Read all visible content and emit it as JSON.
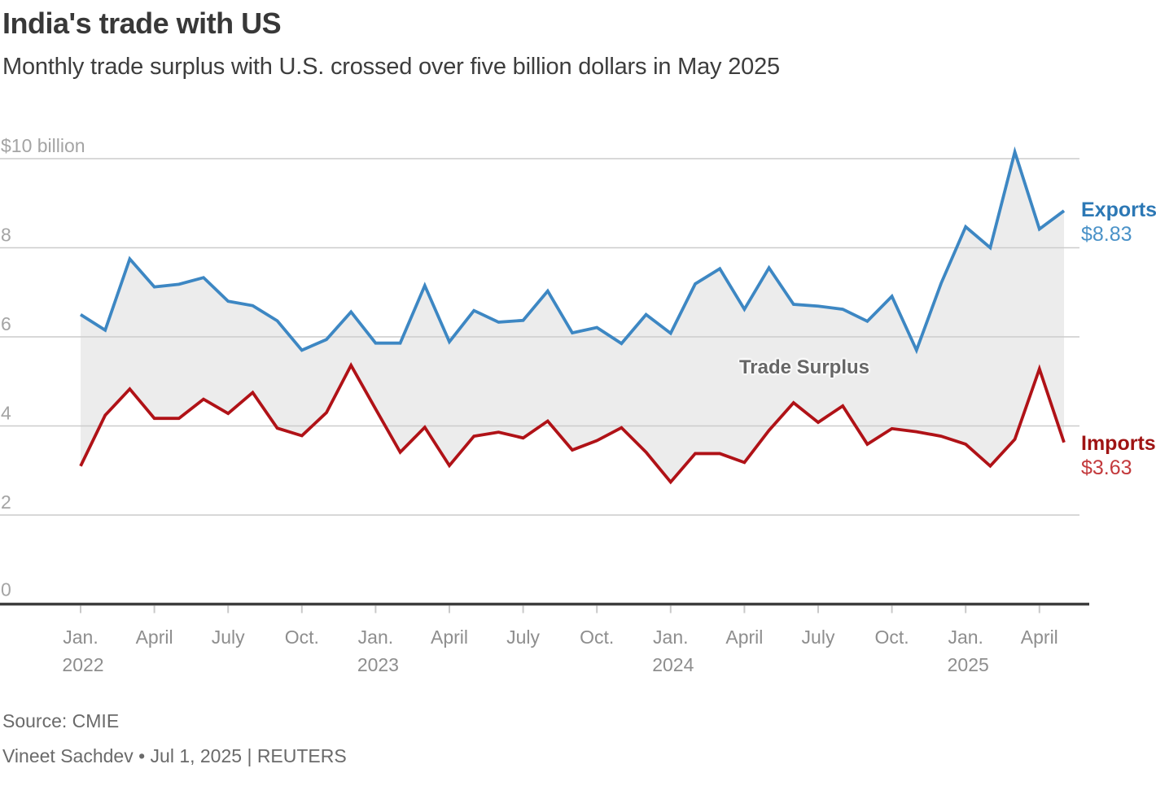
{
  "header": {
    "title": "India's trade with US",
    "subtitle": "Monthly trade surplus with U.S. crossed over five billion dollars in May 2025"
  },
  "footer": {
    "source": "Source: CMIE",
    "credit": "Vineet Sachdev • Jul 1, 2025 | REUTERS"
  },
  "chart_data": {
    "type": "line",
    "title": "India's trade with US",
    "subtitle": "Monthly trade surplus with U.S. crossed over five billion dollars in May 2025",
    "unit": "US$ billion",
    "ylim": [
      0,
      10
    ],
    "grid": true,
    "area_label": "Trade Surplus",
    "area_color": "#ececec",
    "gridline_color": "#cccccc",
    "axis_color": "#3d3d3d",
    "tick_color": "#c9c9c9",
    "y_label_color": "#a4a4a4",
    "x_label_color": "#8e8e8e",
    "y_axis": {
      "ticks": [
        {
          "v": 0,
          "label": "0"
        },
        {
          "v": 2,
          "label": "2"
        },
        {
          "v": 4,
          "label": "4"
        },
        {
          "v": 6,
          "label": "6"
        },
        {
          "v": 8,
          "label": "8"
        },
        {
          "v": 10,
          "label": "$10 billion"
        }
      ]
    },
    "x_axis": {
      "ticks": [
        {
          "m": 0,
          "label": "Jan.",
          "year": "2022"
        },
        {
          "m": 3,
          "label": "April"
        },
        {
          "m": 6,
          "label": "July"
        },
        {
          "m": 9,
          "label": "Oct."
        },
        {
          "m": 12,
          "label": "Jan.",
          "year": "2023"
        },
        {
          "m": 15,
          "label": "April"
        },
        {
          "m": 18,
          "label": "July"
        },
        {
          "m": 21,
          "label": "Oct."
        },
        {
          "m": 24,
          "label": "Jan.",
          "year": "2024"
        },
        {
          "m": 27,
          "label": "April"
        },
        {
          "m": 30,
          "label": "July"
        },
        {
          "m": 33,
          "label": "Oct."
        },
        {
          "m": 36,
          "label": "Jan.",
          "year": "2025"
        },
        {
          "m": 39,
          "label": "April"
        }
      ]
    },
    "series": [
      {
        "name": "Exports",
        "end_value": "$8.83",
        "color": "#3d87c3",
        "values": [
          6.5,
          6.15,
          7.75,
          7.12,
          7.18,
          7.33,
          6.8,
          6.7,
          6.36,
          5.7,
          5.94,
          6.56,
          5.86,
          5.86,
          7.15,
          5.89,
          6.59,
          6.33,
          6.37,
          7.03,
          6.09,
          6.21,
          5.85,
          6.5,
          6.08,
          7.19,
          7.53,
          6.62,
          7.55,
          6.73,
          6.69,
          6.62,
          6.35,
          6.91,
          5.7,
          7.2,
          8.47,
          8.0,
          10.15,
          8.42,
          8.83
        ]
      },
      {
        "name": "Imports",
        "end_value": "$3.63",
        "color": "#b01217",
        "values": [
          3.1,
          4.24,
          4.83,
          4.17,
          4.17,
          4.6,
          4.28,
          4.75,
          3.95,
          3.78,
          4.3,
          5.36,
          4.38,
          3.41,
          3.97,
          3.11,
          3.77,
          3.86,
          3.73,
          4.11,
          3.46,
          3.67,
          3.96,
          3.41,
          2.74,
          3.38,
          3.38,
          3.18,
          3.9,
          4.52,
          4.08,
          4.45,
          3.59,
          3.94,
          3.87,
          3.77,
          3.59,
          3.1,
          3.7,
          5.28,
          3.63
        ]
      }
    ]
  }
}
